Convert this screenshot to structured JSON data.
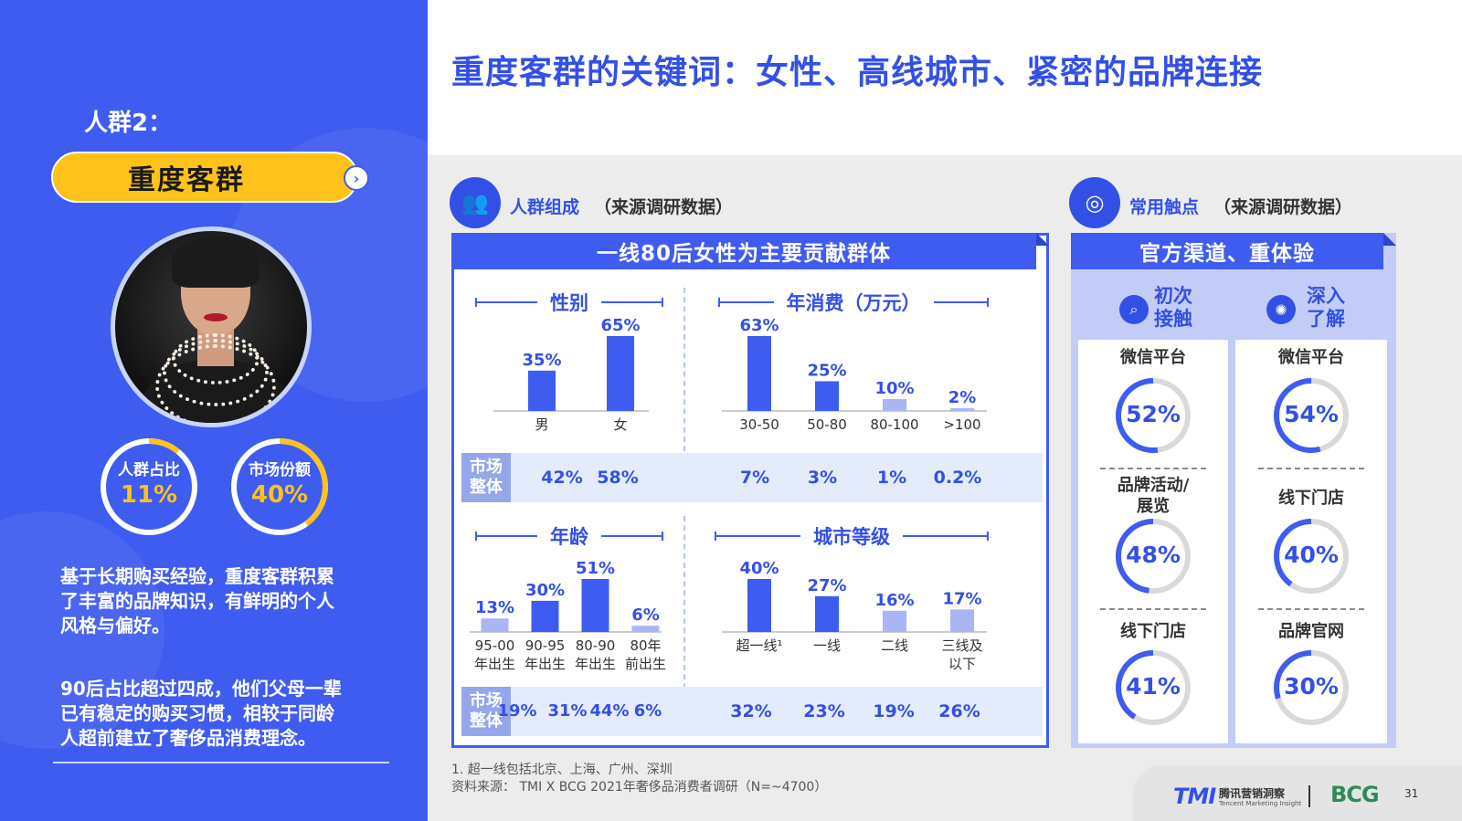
{
  "left": {
    "persona_label": "人群2：",
    "pill_label": "重度客群",
    "rings": [
      {
        "label": "人群占比",
        "value": "11%",
        "fraction": 0.11
      },
      {
        "label": "市场份额",
        "value": "40%",
        "fraction": 0.4
      }
    ],
    "desc1": [
      "基于长期购买经验，重度客群积累",
      "了丰富的品牌知识，有鲜明的个人",
      "风格与偏好。"
    ],
    "desc2": [
      "90后占比超过四成，他们父母一辈",
      "已有稳定的购买习惯，相较于同龄",
      "人超前建立了奢侈品消费理念。"
    ]
  },
  "title": "重度客群的关键词：女性、高线城市、紧密的品牌连接",
  "section1": {
    "title": "人群组成",
    "sub": "（来源调研数据）",
    "banner": "一线80后女性为主要贡献群体",
    "market_tag": [
      "市场",
      "整体"
    ]
  },
  "section2": {
    "title": "常用触点",
    "sub": "（来源调研数据）",
    "banner": "官方渠道、重体验"
  },
  "chart_data": [
    {
      "type": "bar",
      "title": "性别",
      "categories": [
        "男",
        "女"
      ],
      "values": [
        35,
        65
      ],
      "value_labels": [
        "35%",
        "65%"
      ],
      "market": [
        "42%",
        "58%"
      ],
      "ylim": [
        0,
        100
      ]
    },
    {
      "type": "bar",
      "title": "年消费（万元）",
      "categories": [
        "30-50",
        "50-80",
        "80-100",
        ">100"
      ],
      "values": [
        63,
        25,
        10,
        2
      ],
      "value_labels": [
        "63%",
        "25%",
        "10%",
        "2%"
      ],
      "market": [
        "7%",
        "3%",
        "1%",
        "0.2%"
      ],
      "ylim": [
        0,
        100
      ]
    },
    {
      "type": "bar",
      "title": "年龄",
      "categories": [
        "95-00\n年出生",
        "90-95\n年出生",
        "80-90\n年出生",
        "80年\n前出生"
      ],
      "values": [
        13,
        30,
        51,
        6
      ],
      "value_labels": [
        "13%",
        "30%",
        "51%",
        "6%"
      ],
      "market": [
        "19%",
        "31%",
        "44%",
        "6%"
      ],
      "ylim": [
        0,
        100
      ]
    },
    {
      "type": "bar",
      "title": "城市等级",
      "categories": [
        "超一线¹",
        "一线",
        "二线",
        "三线及\n以下"
      ],
      "values": [
        40,
        27,
        16,
        17
      ],
      "value_labels": [
        "40%",
        "27%",
        "16%",
        "17%"
      ],
      "market": [
        "32%",
        "23%",
        "19%",
        "26%"
      ],
      "ylim": [
        0,
        100
      ]
    }
  ],
  "touchpoints": {
    "columns": [
      {
        "head": [
          "初次",
          "接触"
        ],
        "icon": "search-icon",
        "items": [
          {
            "label": "微信平台",
            "value": "52%",
            "fraction": 0.52
          },
          {
            "label": "品牌活动/\n展览",
            "value": "48%",
            "fraction": 0.48
          },
          {
            "label": "线下门店",
            "value": "41%",
            "fraction": 0.41
          }
        ]
      },
      {
        "head": [
          "深入",
          "了解"
        ],
        "icon": "brain-icon",
        "items": [
          {
            "label": "微信平台",
            "value": "54%",
            "fraction": 0.54
          },
          {
            "label": "线下门店",
            "value": "40%",
            "fraction": 0.4
          },
          {
            "label": "品牌官网",
            "value": "30%",
            "fraction": 0.3
          }
        ]
      }
    ]
  },
  "footnote": [
    "1. 超一线包括北京、上海、广州、深圳",
    "资料来源： TMI X BCG 2021年奢侈品消费者调研（N=~4700）"
  ],
  "footer": {
    "tmi": "TMI",
    "tmi_cn": "腾讯营销洞察",
    "tmi_en": "Tencent Marketing Insight",
    "bcg": "BCG",
    "page": "31"
  },
  "colors": {
    "primary": "#3f5cf0",
    "accent": "#ffc21a",
    "light_bar": "#a9b6f3"
  }
}
